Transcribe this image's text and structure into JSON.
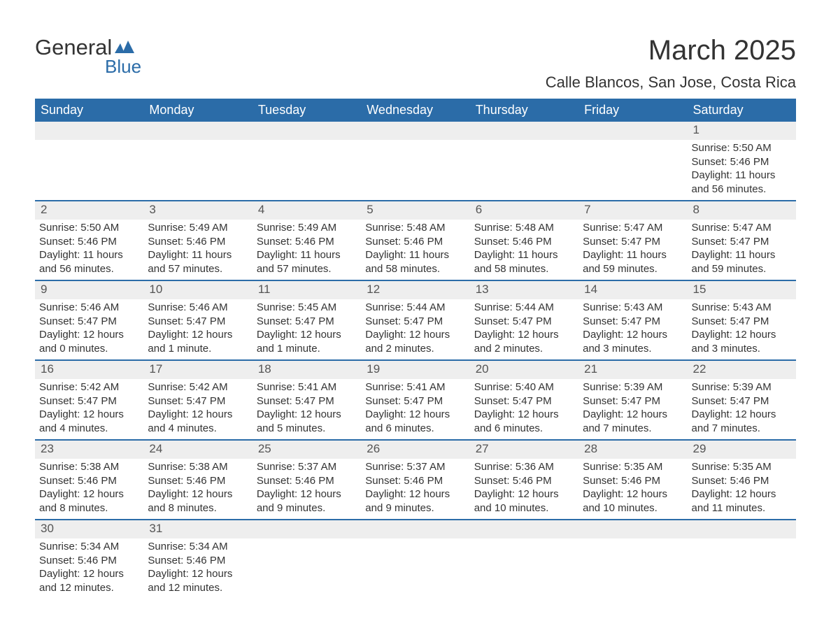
{
  "brand": {
    "name_part1": "General",
    "name_part2": "Blue",
    "icon_color": "#2b6ca8",
    "text_color": "#333333"
  },
  "title": "March 2025",
  "location": "Calle Blancos, San Jose, Costa Rica",
  "colors": {
    "header_bg": "#2b6ca8",
    "header_fg": "#ffffff",
    "daynum_bg": "#eeeeee",
    "row_border": "#2b6ca8",
    "text": "#333333",
    "background": "#ffffff"
  },
  "weekdays": [
    "Sunday",
    "Monday",
    "Tuesday",
    "Wednesday",
    "Thursday",
    "Friday",
    "Saturday"
  ],
  "weeks": [
    [
      null,
      null,
      null,
      null,
      null,
      null,
      {
        "day": "1",
        "sunrise": "Sunrise: 5:50 AM",
        "sunset": "Sunset: 5:46 PM",
        "daylight": "Daylight: 11 hours and 56 minutes."
      }
    ],
    [
      {
        "day": "2",
        "sunrise": "Sunrise: 5:50 AM",
        "sunset": "Sunset: 5:46 PM",
        "daylight": "Daylight: 11 hours and 56 minutes."
      },
      {
        "day": "3",
        "sunrise": "Sunrise: 5:49 AM",
        "sunset": "Sunset: 5:46 PM",
        "daylight": "Daylight: 11 hours and 57 minutes."
      },
      {
        "day": "4",
        "sunrise": "Sunrise: 5:49 AM",
        "sunset": "Sunset: 5:46 PM",
        "daylight": "Daylight: 11 hours and 57 minutes."
      },
      {
        "day": "5",
        "sunrise": "Sunrise: 5:48 AM",
        "sunset": "Sunset: 5:46 PM",
        "daylight": "Daylight: 11 hours and 58 minutes."
      },
      {
        "day": "6",
        "sunrise": "Sunrise: 5:48 AM",
        "sunset": "Sunset: 5:46 PM",
        "daylight": "Daylight: 11 hours and 58 minutes."
      },
      {
        "day": "7",
        "sunrise": "Sunrise: 5:47 AM",
        "sunset": "Sunset: 5:47 PM",
        "daylight": "Daylight: 11 hours and 59 minutes."
      },
      {
        "day": "8",
        "sunrise": "Sunrise: 5:47 AM",
        "sunset": "Sunset: 5:47 PM",
        "daylight": "Daylight: 11 hours and 59 minutes."
      }
    ],
    [
      {
        "day": "9",
        "sunrise": "Sunrise: 5:46 AM",
        "sunset": "Sunset: 5:47 PM",
        "daylight": "Daylight: 12 hours and 0 minutes."
      },
      {
        "day": "10",
        "sunrise": "Sunrise: 5:46 AM",
        "sunset": "Sunset: 5:47 PM",
        "daylight": "Daylight: 12 hours and 1 minute."
      },
      {
        "day": "11",
        "sunrise": "Sunrise: 5:45 AM",
        "sunset": "Sunset: 5:47 PM",
        "daylight": "Daylight: 12 hours and 1 minute."
      },
      {
        "day": "12",
        "sunrise": "Sunrise: 5:44 AM",
        "sunset": "Sunset: 5:47 PM",
        "daylight": "Daylight: 12 hours and 2 minutes."
      },
      {
        "day": "13",
        "sunrise": "Sunrise: 5:44 AM",
        "sunset": "Sunset: 5:47 PM",
        "daylight": "Daylight: 12 hours and 2 minutes."
      },
      {
        "day": "14",
        "sunrise": "Sunrise: 5:43 AM",
        "sunset": "Sunset: 5:47 PM",
        "daylight": "Daylight: 12 hours and 3 minutes."
      },
      {
        "day": "15",
        "sunrise": "Sunrise: 5:43 AM",
        "sunset": "Sunset: 5:47 PM",
        "daylight": "Daylight: 12 hours and 3 minutes."
      }
    ],
    [
      {
        "day": "16",
        "sunrise": "Sunrise: 5:42 AM",
        "sunset": "Sunset: 5:47 PM",
        "daylight": "Daylight: 12 hours and 4 minutes."
      },
      {
        "day": "17",
        "sunrise": "Sunrise: 5:42 AM",
        "sunset": "Sunset: 5:47 PM",
        "daylight": "Daylight: 12 hours and 4 minutes."
      },
      {
        "day": "18",
        "sunrise": "Sunrise: 5:41 AM",
        "sunset": "Sunset: 5:47 PM",
        "daylight": "Daylight: 12 hours and 5 minutes."
      },
      {
        "day": "19",
        "sunrise": "Sunrise: 5:41 AM",
        "sunset": "Sunset: 5:47 PM",
        "daylight": "Daylight: 12 hours and 6 minutes."
      },
      {
        "day": "20",
        "sunrise": "Sunrise: 5:40 AM",
        "sunset": "Sunset: 5:47 PM",
        "daylight": "Daylight: 12 hours and 6 minutes."
      },
      {
        "day": "21",
        "sunrise": "Sunrise: 5:39 AM",
        "sunset": "Sunset: 5:47 PM",
        "daylight": "Daylight: 12 hours and 7 minutes."
      },
      {
        "day": "22",
        "sunrise": "Sunrise: 5:39 AM",
        "sunset": "Sunset: 5:47 PM",
        "daylight": "Daylight: 12 hours and 7 minutes."
      }
    ],
    [
      {
        "day": "23",
        "sunrise": "Sunrise: 5:38 AM",
        "sunset": "Sunset: 5:46 PM",
        "daylight": "Daylight: 12 hours and 8 minutes."
      },
      {
        "day": "24",
        "sunrise": "Sunrise: 5:38 AM",
        "sunset": "Sunset: 5:46 PM",
        "daylight": "Daylight: 12 hours and 8 minutes."
      },
      {
        "day": "25",
        "sunrise": "Sunrise: 5:37 AM",
        "sunset": "Sunset: 5:46 PM",
        "daylight": "Daylight: 12 hours and 9 minutes."
      },
      {
        "day": "26",
        "sunrise": "Sunrise: 5:37 AM",
        "sunset": "Sunset: 5:46 PM",
        "daylight": "Daylight: 12 hours and 9 minutes."
      },
      {
        "day": "27",
        "sunrise": "Sunrise: 5:36 AM",
        "sunset": "Sunset: 5:46 PM",
        "daylight": "Daylight: 12 hours and 10 minutes."
      },
      {
        "day": "28",
        "sunrise": "Sunrise: 5:35 AM",
        "sunset": "Sunset: 5:46 PM",
        "daylight": "Daylight: 12 hours and 10 minutes."
      },
      {
        "day": "29",
        "sunrise": "Sunrise: 5:35 AM",
        "sunset": "Sunset: 5:46 PM",
        "daylight": "Daylight: 12 hours and 11 minutes."
      }
    ],
    [
      {
        "day": "30",
        "sunrise": "Sunrise: 5:34 AM",
        "sunset": "Sunset: 5:46 PM",
        "daylight": "Daylight: 12 hours and 12 minutes."
      },
      {
        "day": "31",
        "sunrise": "Sunrise: 5:34 AM",
        "sunset": "Sunset: 5:46 PM",
        "daylight": "Daylight: 12 hours and 12 minutes."
      },
      null,
      null,
      null,
      null,
      null
    ]
  ]
}
